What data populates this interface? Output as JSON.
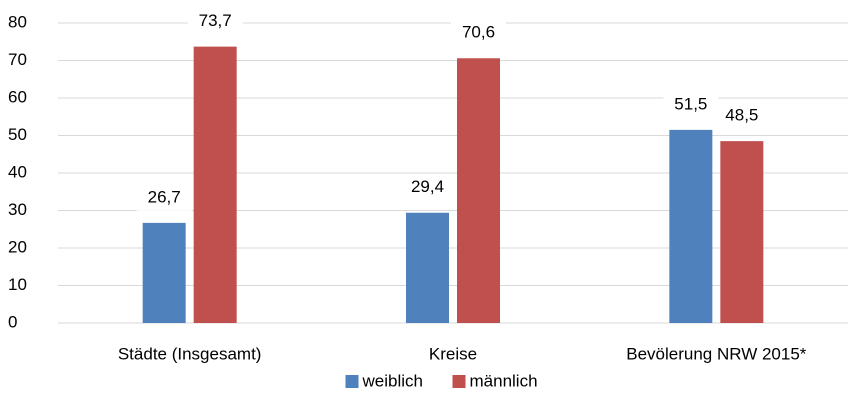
{
  "chart_data": {
    "type": "bar",
    "categories": [
      "Städte (Insgesamt)",
      "Kreise",
      "Bevölerung NRW 2015*"
    ],
    "series": [
      {
        "name": "weiblich",
        "color": "#4f81bd",
        "values": [
          26.7,
          29.4,
          51.5
        ],
        "value_labels": [
          "26,7",
          "29,4",
          "51,5"
        ]
      },
      {
        "name": "männlich",
        "color": "#c0504d",
        "values": [
          73.7,
          70.6,
          48.5
        ],
        "value_labels": [
          "73,7",
          "70,6",
          "48,5"
        ]
      }
    ],
    "ylim": [
      0,
      80
    ],
    "yticks": [
      0,
      10,
      20,
      30,
      40,
      50,
      60,
      70,
      80
    ],
    "grid": true,
    "legend": "bottom"
  }
}
